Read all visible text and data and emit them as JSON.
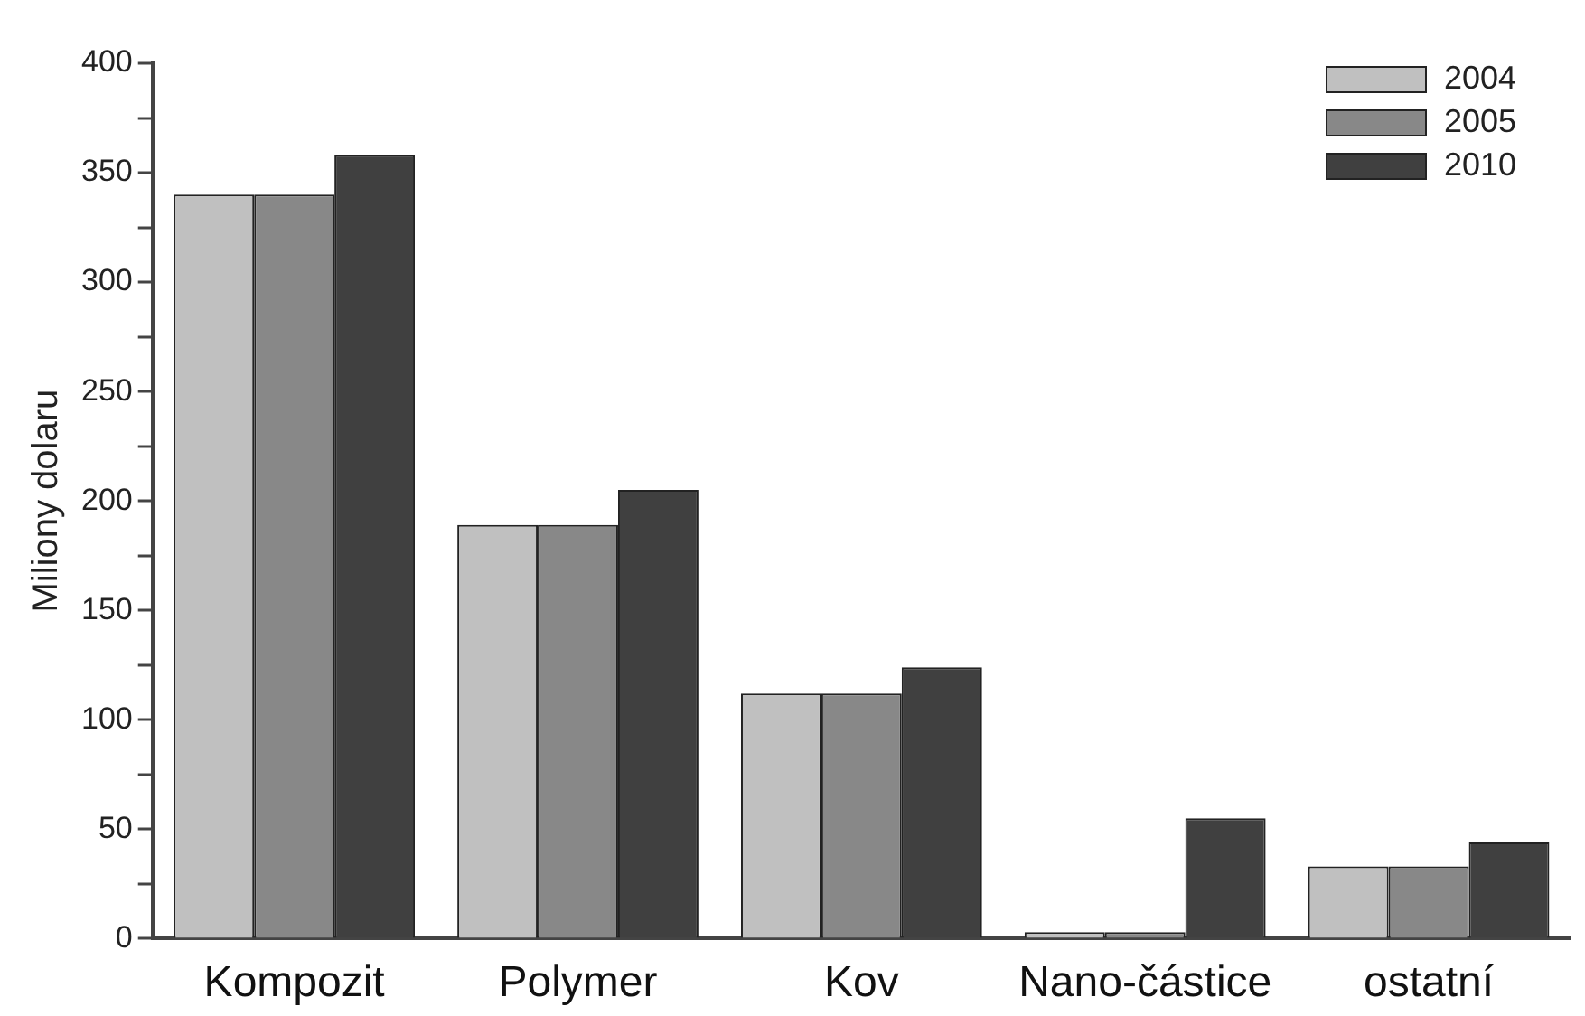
{
  "chart_data": {
    "type": "bar",
    "ylabel": "Miliony dolaru",
    "categories": [
      "Kompozit",
      "Polymer",
      "Kov",
      "Nano-částice",
      "ostatní"
    ],
    "series": [
      {
        "name": "2004",
        "color": "#c0c0c0",
        "values": [
          340,
          189,
          112,
          3,
          33
        ]
      },
      {
        "name": "2005",
        "color": "#888888",
        "values": [
          340,
          189,
          112,
          3,
          33
        ]
      },
      {
        "name": "2010",
        "color": "#404040",
        "values": [
          358,
          205,
          124,
          55,
          44
        ]
      }
    ],
    "ylim": [
      0,
      400
    ],
    "yticks": [
      0,
      {
        "value": 25,
        "label": null
      },
      50,
      {
        "value": 75,
        "label": null
      },
      100,
      {
        "value": 125,
        "label": null
      },
      150,
      {
        "value": 175,
        "label": null
      },
      200,
      {
        "value": 225,
        "label": null
      },
      250,
      {
        "value": 275,
        "label": null
      },
      300,
      {
        "value": 325,
        "label": null
      },
      350,
      {
        "value": 375,
        "label": null
      },
      400
    ],
    "grid": false,
    "legend": "top right"
  }
}
